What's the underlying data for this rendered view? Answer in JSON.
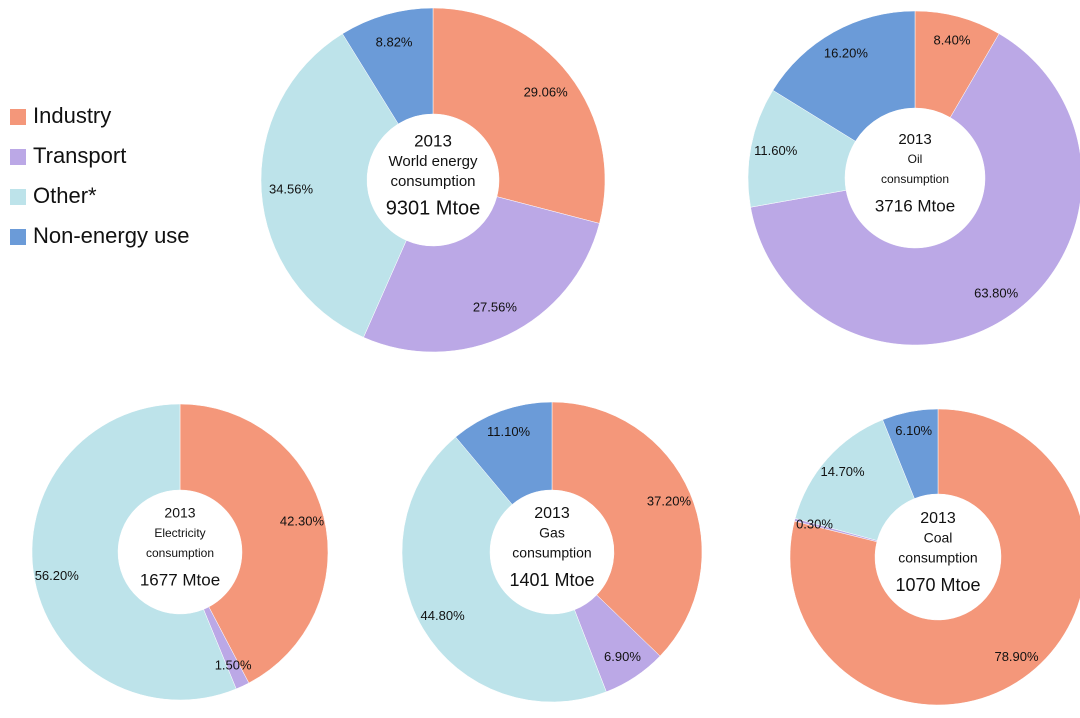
{
  "chart_data": [
    {
      "type": "pie",
      "categories": [
        "Industry",
        "Transport",
        "Other*",
        "Non-energy use"
      ],
      "values": [
        29.06,
        27.56,
        34.56,
        8.82
      ],
      "value_labels": [
        "29.06%",
        "27.56%",
        "34.56%",
        "8.82%"
      ],
      "colors": [
        "#f4977a",
        "#bba8e6",
        "#bde3ea",
        "#6b9bd8"
      ],
      "center_text": [
        "2013",
        "World energy",
        "consumption",
        "9301 Mtoe"
      ],
      "legend": "left"
    },
    {
      "type": "pie",
      "categories": [
        "Industry",
        "Transport",
        "Other*",
        "Non-energy use"
      ],
      "values": [
        8.4,
        63.8,
        11.6,
        16.2
      ],
      "value_labels": [
        "8.40%",
        "63.80%",
        "11.60%",
        "16.20%"
      ],
      "colors": [
        "#f4977a",
        "#bba8e6",
        "#bde3ea",
        "#6b9bd8"
      ],
      "center_text": [
        "2013",
        "Oil",
        "consumption",
        "3716 Mtoe"
      ]
    },
    {
      "type": "pie",
      "categories": [
        "Industry",
        "Transport",
        "Other*"
      ],
      "values": [
        42.3,
        1.5,
        56.2
      ],
      "value_labels": [
        "42.30%",
        "1.50%",
        "56.20%"
      ],
      "colors": [
        "#f4977a",
        "#bba8e6",
        "#bde3ea"
      ],
      "center_text": [
        "2013",
        "Electricity",
        "consumption",
        "1677 Mtoe"
      ]
    },
    {
      "type": "pie",
      "categories": [
        "Industry",
        "Transport",
        "Other*",
        "Non-energy use"
      ],
      "values": [
        37.2,
        6.9,
        44.8,
        11.1
      ],
      "value_labels": [
        "37.20%",
        "6.90%",
        "44.80%",
        "11.10%"
      ],
      "colors": [
        "#f4977a",
        "#bba8e6",
        "#bde3ea",
        "#6b9bd8"
      ],
      "center_text": [
        "2013",
        "Gas",
        "consumption",
        "1401 Mtoe"
      ]
    },
    {
      "type": "pie",
      "categories": [
        "Industry",
        "Transport",
        "Other*",
        "Non-energy use"
      ],
      "values": [
        78.9,
        0.3,
        14.7,
        6.1
      ],
      "value_labels": [
        "78.90%",
        "0.30%",
        "14.70%",
        "6.10%"
      ],
      "colors": [
        "#f4977a",
        "#bba8e6",
        "#bde3ea",
        "#6b9bd8"
      ],
      "center_text": [
        "2013",
        "Coal",
        "consumption",
        "1070 Mtoe"
      ]
    }
  ]
}
